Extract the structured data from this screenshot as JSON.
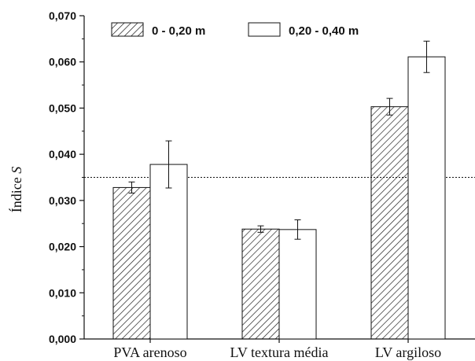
{
  "chart_data": {
    "type": "bar",
    "categories": [
      "PVA arenoso",
      "LV textura média",
      "LV argiloso"
    ],
    "series": [
      {
        "name": "0 - 0,20 m",
        "pattern": "hatched",
        "values": [
          0.0328,
          0.0238,
          0.0503
        ],
        "errors": [
          0.0012,
          0.0007,
          0.0018
        ]
      },
      {
        "name": "0,20 - 0,40 m",
        "pattern": "white",
        "values": [
          0.0378,
          0.0237,
          0.0611
        ],
        "errors": [
          0.0051,
          0.0021,
          0.0034
        ]
      }
    ],
    "ylabel_prefix": "Índice",
    "ylabel_italic": "S",
    "ylim": [
      0,
      0.07
    ],
    "yticks": [
      "0,000",
      "0,010",
      "0,020",
      "0,030",
      "0,040",
      "0,050",
      "0,060",
      "0,070"
    ],
    "reference_line": 0.035,
    "legend_position": "top",
    "grid": false,
    "colors": {
      "bar_stroke": "#111111",
      "hatch": "#111111",
      "fill_white": "#ffffff"
    }
  }
}
